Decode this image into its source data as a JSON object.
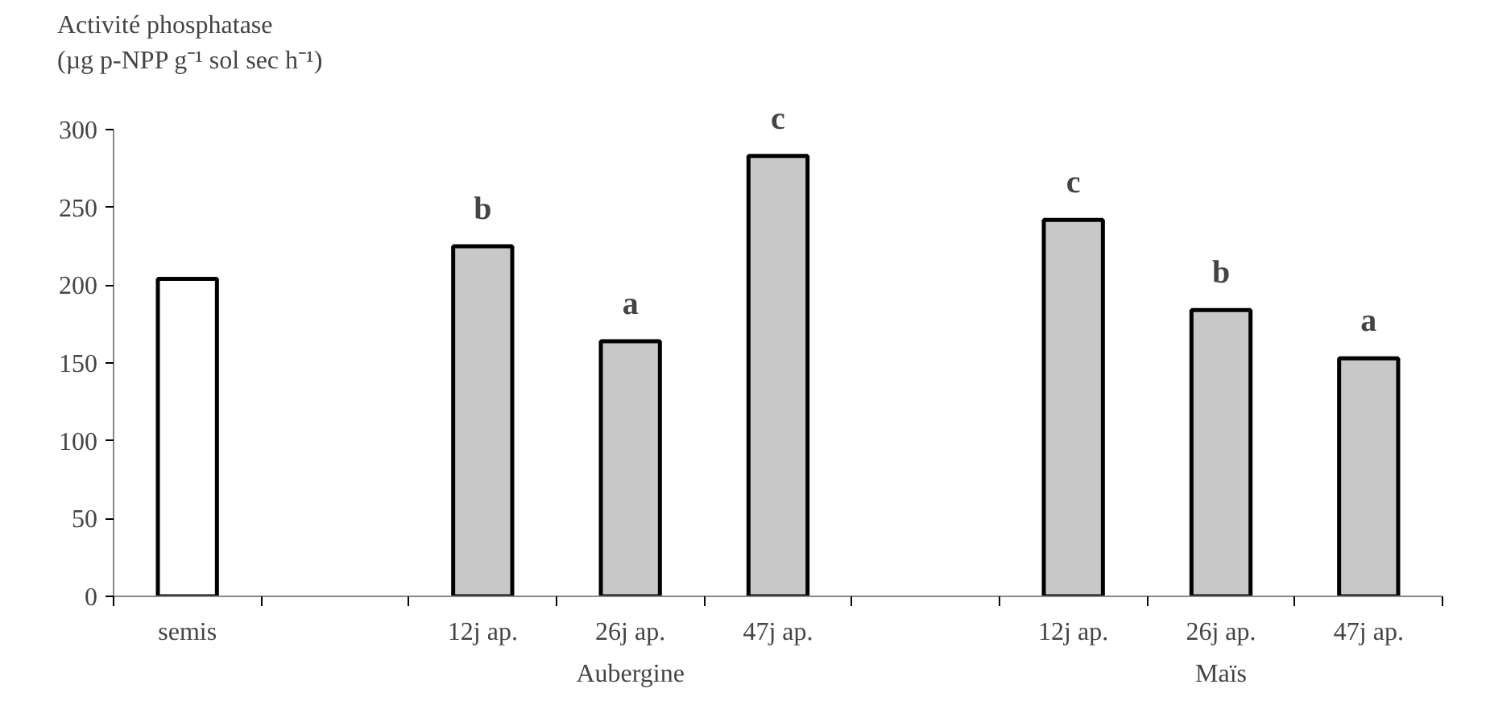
{
  "chart_data": {
    "type": "bar",
    "ylabel": "Activité phosphatase\n(µg p-NPP g⁻¹ sol sec h⁻¹)",
    "categories": [
      "semis",
      null,
      "12j ap.",
      "26j ap.",
      "47j ap.",
      null,
      "12j ap.",
      "26j ap.",
      "47j ap."
    ],
    "values": [
      204,
      null,
      225,
      164,
      283,
      null,
      242,
      184,
      153
    ],
    "colors": [
      "#ffffff",
      null,
      "#c8c8c8",
      "#c8c8c8",
      "#c8c8c8",
      null,
      "#c8c8c8",
      "#c8c8c8",
      "#c8c8c8"
    ],
    "value_labels": [
      null,
      null,
      "b",
      "a",
      "c",
      null,
      "c",
      "b",
      "a"
    ],
    "annotations": [
      "Aubergine",
      "Maïs"
    ],
    "ylim": [
      0,
      300
    ],
    "yticks": [
      0,
      50,
      100,
      150,
      200,
      250,
      300
    ],
    "grid": false
  }
}
